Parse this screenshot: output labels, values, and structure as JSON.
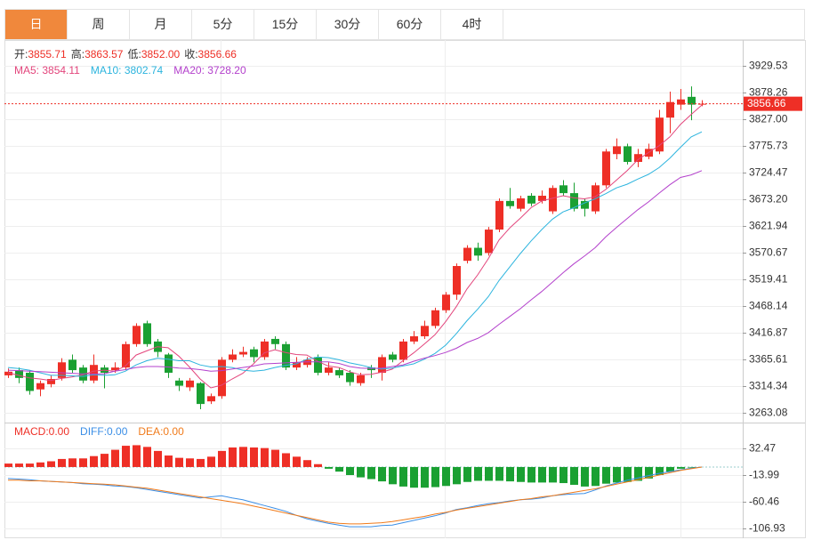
{
  "tabs": [
    "日",
    "周",
    "月",
    "5分",
    "15分",
    "30分",
    "60分",
    "4时"
  ],
  "active_tab": 0,
  "chart_data": [
    {
      "type": "candlestick",
      "info": [
        [
          "开:",
          "3855.71"
        ],
        [
          "高:",
          "3863.57"
        ],
        [
          "低:",
          "3852.00"
        ],
        [
          "收:",
          "3856.66"
        ]
      ],
      "up_color": "#ee2f26",
      "down_color": "#1aa032",
      "last_price": 3856.66,
      "ylim": [
        3244.28,
        3979.09
      ],
      "yticks": [
        3929.53,
        3878.26,
        {
          "value": 3827,
          "label": "3827.00"
        },
        3775.73,
        3724.47,
        {
          "value": 3673.2,
          "label": "3673.20"
        },
        3621.94,
        3570.67,
        3519.41,
        3468.14,
        3416.87,
        3365.61,
        3314.34,
        3263.08
      ],
      "grid": true,
      "open": [
        3335,
        3345,
        3340,
        3308,
        3318,
        3330,
        3365,
        3350,
        3325,
        3350,
        3345,
        3350,
        3395,
        3435,
        3400,
        3375,
        3325,
        3312,
        3320,
        3285,
        3295,
        3365,
        3375,
        3385,
        3370,
        3405,
        3395,
        3350,
        3355,
        3370,
        3340,
        3345,
        3340,
        3320,
        3350,
        3340,
        3375,
        3365,
        3400,
        3410,
        3430,
        3460,
        3490,
        3555,
        3580,
        3570,
        3615,
        3670,
        3655,
        3680,
        3670,
        3650,
        3700,
        3685,
        3670,
        3650,
        3700,
        3760,
        3775,
        3745,
        3755,
        3765,
        3830,
        3855,
        3870,
        3855.71
      ],
      "high": [
        3348,
        3350,
        3345,
        3325,
        3335,
        3368,
        3375,
        3355,
        3375,
        3355,
        3360,
        3400,
        3435,
        3440,
        3405,
        3378,
        3330,
        3330,
        3322,
        3300,
        3370,
        3385,
        3390,
        3390,
        3405,
        3410,
        3400,
        3370,
        3370,
        3375,
        3360,
        3350,
        3345,
        3340,
        3355,
        3375,
        3380,
        3405,
        3420,
        3440,
        3465,
        3495,
        3550,
        3585,
        3590,
        3620,
        3675,
        3695,
        3680,
        3685,
        3690,
        3700,
        3710,
        3705,
        3675,
        3705,
        3770,
        3790,
        3780,
        3770,
        3780,
        3845,
        3880,
        3885,
        3890,
        3863.57
      ],
      "low": [
        3330,
        3320,
        3298,
        3295,
        3312,
        3325,
        3340,
        3320,
        3320,
        3310,
        3340,
        3345,
        3390,
        3390,
        3370,
        3330,
        3305,
        3305,
        3270,
        3280,
        3290,
        3360,
        3370,
        3360,
        3365,
        3385,
        3345,
        3345,
        3350,
        3335,
        3335,
        3330,
        3315,
        3315,
        3330,
        3325,
        3360,
        3360,
        3395,
        3405,
        3425,
        3455,
        3480,
        3550,
        3555,
        3565,
        3610,
        3655,
        3650,
        3660,
        3665,
        3645,
        3680,
        3650,
        3640,
        3645,
        3695,
        3750,
        3740,
        3735,
        3750,
        3760,
        3800,
        3845,
        3825,
        3852.0
      ],
      "close": [
        3342,
        3330,
        3305,
        3320,
        3328,
        3360,
        3345,
        3325,
        3355,
        3340,
        3350,
        3395,
        3430,
        3395,
        3380,
        3340,
        3315,
        3325,
        3280,
        3295,
        3365,
        3375,
        3380,
        3370,
        3400,
        3395,
        3350,
        3360,
        3365,
        3340,
        3350,
        3335,
        3322,
        3335,
        3345,
        3370,
        3365,
        3400,
        3410,
        3430,
        3460,
        3490,
        3545,
        3580,
        3565,
        3615,
        3670,
        3660,
        3675,
        3665,
        3680,
        3695,
        3685,
        3655,
        3655,
        3700,
        3765,
        3775,
        3745,
        3760,
        3770,
        3830,
        3860,
        3865,
        3855,
        3856.66
      ],
      "series": [
        {
          "name": "MA5: 3854.11",
          "color": "#e3457c",
          "values": [
            3340,
            3335,
            3330,
            3328,
            3325,
            3329,
            3332,
            3336,
            3343,
            3345,
            3343,
            3353,
            3374,
            3382,
            3390,
            3388,
            3372,
            3351,
            3328,
            3311,
            3316,
            3328,
            3339,
            3357,
            3378,
            3384,
            3379,
            3375,
            3374,
            3362,
            3353,
            3350,
            3342,
            3336,
            3337,
            3341,
            3347,
            3363,
            3378,
            3395,
            3413,
            3438,
            3467,
            3501,
            3528,
            3559,
            3595,
            3618,
            3637,
            3657,
            3670,
            3675,
            3680,
            3676,
            3674,
            3678,
            3692,
            3710,
            3728,
            3749,
            3763,
            3776,
            3793,
            3817,
            3836,
            3854.11
          ]
        },
        {
          "name": "MA10: 3802.74",
          "color": "#2cb4de",
          "values": [
            3350,
            3348,
            3345,
            3340,
            3335,
            3335,
            3334,
            3333,
            3336,
            3335,
            3336,
            3343,
            3355,
            3363,
            3368,
            3366,
            3363,
            3363,
            3355,
            3351,
            3352,
            3350,
            3345,
            3343,
            3345,
            3350,
            3354,
            3357,
            3366,
            3370,
            3369,
            3365,
            3359,
            3355,
            3350,
            3347,
            3349,
            3353,
            3357,
            3366,
            3377,
            3393,
            3415,
            3440,
            3462,
            3486,
            3517,
            3543,
            3569,
            3593,
            3615,
            3635,
            3649,
            3657,
            3666,
            3674,
            3684,
            3695,
            3702,
            3712,
            3721,
            3734,
            3752,
            3773,
            3793,
            3802.74
          ]
        },
        {
          "name": "MA20: 3728.20",
          "color": "#b340cc",
          "values": [
            3345,
            3344,
            3343,
            3342,
            3341,
            3340,
            3339,
            3338,
            3338,
            3338,
            3343,
            3346,
            3350,
            3352,
            3352,
            3351,
            3349,
            3348,
            3346,
            3343,
            3344,
            3347,
            3350,
            3353,
            3357,
            3358,
            3359,
            3360,
            3361,
            3361,
            3361,
            3358,
            3352,
            3349,
            3348,
            3349,
            3352,
            3355,
            3362,
            3368,
            3373,
            3379,
            3387,
            3398,
            3406,
            3417,
            3433,
            3448,
            3463,
            3480,
            3496,
            3514,
            3532,
            3549,
            3564,
            3580,
            3601,
            3619,
            3636,
            3653,
            3668,
            3685,
            3701,
            3715,
            3720,
            3728.2
          ]
        }
      ]
    },
    {
      "type": "macd",
      "ylim": [
        -123.97,
        77.38
      ],
      "yticks": [
        32.47,
        -13.99,
        -60.46,
        -106.93
      ],
      "series": [
        {
          "name": "MACD:0.00",
          "color": "#ee2f26",
          "down_color": "#1aa032",
          "values": [
            6,
            6,
            6,
            8,
            10,
            14,
            15,
            15,
            19,
            23,
            30,
            37,
            38,
            35,
            28,
            20,
            16,
            15,
            14,
            18,
            28,
            34,
            35,
            34,
            33,
            30,
            24,
            18,
            12,
            5,
            -3,
            -8,
            -14,
            -18,
            -21,
            -25,
            -30,
            -34,
            -36,
            -36,
            -35,
            -33,
            -30,
            -26,
            -24,
            -24,
            -24,
            -25,
            -26,
            -27,
            -27,
            -27,
            -28,
            -31,
            -34,
            -33,
            -29,
            -27,
            -26,
            -24,
            -20,
            -14,
            -8,
            -3,
            -1,
            0
          ]
        },
        {
          "name": "DIFF:0.00",
          "color": "#3a8ee6",
          "values": [
            -20,
            -21,
            -22,
            -24,
            -25,
            -26,
            -27,
            -29,
            -30,
            -31,
            -33,
            -34,
            -36,
            -39,
            -42,
            -45,
            -48,
            -51,
            -54,
            -52,
            -50,
            -54,
            -57,
            -62,
            -67,
            -72,
            -77,
            -84,
            -90,
            -94,
            -98,
            -101,
            -104,
            -104,
            -104,
            -102,
            -101,
            -97,
            -93,
            -89,
            -85,
            -80,
            -74,
            -71,
            -67,
            -64,
            -62,
            -59,
            -57,
            -56,
            -54,
            -50,
            -48,
            -47,
            -46,
            -40,
            -33,
            -28,
            -23,
            -19,
            -15,
            -11,
            -8,
            -5,
            -2,
            0
          ]
        },
        {
          "name": "DEA:0.00",
          "color": "#f07a1a",
          "values": [
            -23,
            -23,
            -24,
            -24,
            -25,
            -26,
            -27,
            -28,
            -29,
            -30,
            -31,
            -33,
            -35,
            -37,
            -40,
            -43,
            -46,
            -49,
            -52,
            -55,
            -58,
            -61,
            -64,
            -68,
            -72,
            -76,
            -80,
            -84,
            -88,
            -92,
            -96,
            -98,
            -99,
            -99,
            -98,
            -97,
            -95,
            -92,
            -89,
            -86,
            -82,
            -79,
            -75,
            -72,
            -69,
            -66,
            -63,
            -60,
            -57,
            -55,
            -52,
            -50,
            -47,
            -44,
            -41,
            -38,
            -34,
            -30,
            -26,
            -22,
            -18,
            -14,
            -10,
            -6,
            -3,
            0
          ]
        }
      ]
    }
  ]
}
